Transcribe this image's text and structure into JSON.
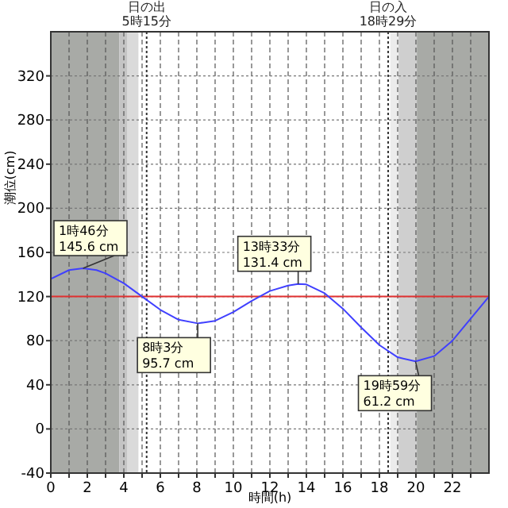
{
  "chart_data": {
    "type": "line",
    "xlabel": "時間(h)",
    "ylabel": "潮位(cm)",
    "xlim": [
      0,
      24
    ],
    "ylim": [
      -40,
      360
    ],
    "xticks": [
      0,
      {
        "value": 1,
        "label": null
      },
      2,
      {
        "value": 3,
        "label": null
      },
      4,
      {
        "value": 5,
        "label": null
      },
      6,
      {
        "value": 7,
        "label": null
      },
      8,
      {
        "value": 9,
        "label": null
      },
      10,
      {
        "value": 11,
        "label": null
      },
      12,
      {
        "value": 13,
        "label": null
      },
      14,
      {
        "value": 15,
        "label": null
      },
      16,
      {
        "value": 17,
        "label": null
      },
      18,
      {
        "value": 19,
        "label": null
      },
      20,
      {
        "value": 21,
        "label": null
      },
      22,
      {
        "value": 23,
        "label": null
      }
    ],
    "yticks": [
      -40,
      0,
      40,
      80,
      120,
      160,
      200,
      240,
      280,
      320
    ],
    "grid": true,
    "marker": "none",
    "line_style": "solid",
    "series": [
      {
        "color": "#4040ff",
        "x": [
          0,
          1,
          1.77,
          2.5,
          3,
          4,
          5,
          6,
          7,
          8.05,
          9,
          10,
          11,
          12,
          13,
          13.55,
          14,
          15,
          16,
          17,
          18,
          19,
          19.98,
          21,
          22,
          23,
          24
        ],
        "values": [
          136,
          144,
          145.6,
          144,
          141,
          132,
          120,
          108,
          99,
          95.7,
          98,
          106,
          116,
          125,
          130,
          131.4,
          131,
          123,
          109,
          92,
          76,
          65,
          61.2,
          66,
          80,
          100,
          120
        ]
      }
    ],
    "bands": [
      {
        "axis": "x",
        "from": 0,
        "to": 3.75,
        "color": "#a8aaa6"
      },
      {
        "axis": "x",
        "from": 3.75,
        "to": 4.2,
        "color": "#c4c4c4"
      },
      {
        "axis": "x",
        "from": 4.2,
        "to": 4.8,
        "color": "#dadada"
      },
      {
        "axis": "x",
        "from": 18.6,
        "to": 19.05,
        "color": "#ececec"
      },
      {
        "axis": "x",
        "from": 19.05,
        "to": 20.05,
        "color": "#cfcfcf"
      },
      {
        "axis": "x",
        "from": 20.05,
        "to": 24,
        "color": "#a8aaa6"
      }
    ],
    "ref_lines": [
      {
        "axis": "y",
        "value": 120,
        "color": "#e03030",
        "line_style": "solid"
      },
      {
        "axis": "x",
        "value": 5.25,
        "label": "日の出\n5時15分",
        "color": "#333333",
        "line_style": "dotted"
      },
      {
        "axis": "x",
        "value": 18.48,
        "label": "日の入\n18時29分",
        "color": "#333333",
        "line_style": "dotted"
      }
    ],
    "annotations": [
      {
        "text": "1時46分\n145.6 cm",
        "x": 1.77,
        "y": 145.6
      },
      {
        "text": "8時3分\n95.7 cm",
        "x": 8.05,
        "y": 95.7
      },
      {
        "text": "13時33分\n131.4 cm",
        "x": 13.55,
        "y": 131.4
      },
      {
        "text": "19時59分\n61.2 cm",
        "x": 19.98,
        "y": 61.2
      }
    ]
  }
}
